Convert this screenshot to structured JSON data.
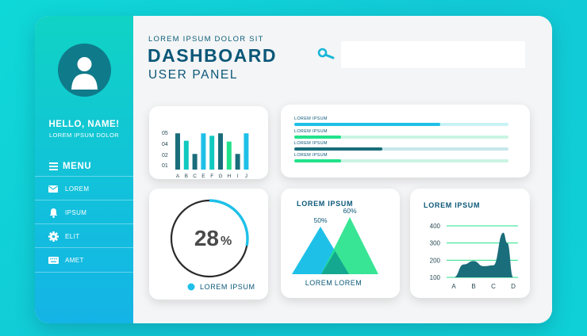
{
  "colors": {
    "accent_dark": "#0b5778",
    "teal": "#10c9c0",
    "cyan": "#1ec0e8",
    "green": "#22e28a",
    "dark_teal": "#1a6d7a"
  },
  "sidebar": {
    "greeting": "HELLO, NAME!",
    "subtitle": "LOREM IPSUM DOLOR",
    "menu_label": "MENU",
    "items": [
      {
        "label": "LOREM",
        "icon": "mail-icon"
      },
      {
        "label": "IPSUM",
        "icon": "bell-icon"
      },
      {
        "label": "ELIT",
        "icon": "gear-icon"
      },
      {
        "label": "AMET",
        "icon": "keyboard-icon"
      }
    ]
  },
  "header": {
    "kicker": "LOREM IPSUM DOLOR SIT",
    "title": "DASHBOARD",
    "subtitle": "USER PANEL",
    "search_placeholder": ""
  },
  "progress_card": {
    "rows": [
      {
        "label": "LOREM IPSUM",
        "value": 0.68,
        "color": "#1ec0e8",
        "track": "#c9f2f5"
      },
      {
        "label": "LOREM IPSUM",
        "value": 0.22,
        "color": "#22e28a",
        "track": "#c9f5e2"
      },
      {
        "label": "LOREM IPSUM",
        "value": 0.41,
        "color": "#1a6d7a",
        "track": "#c7e6ea"
      },
      {
        "label": "LOREM IPSUM",
        "value": 0.22,
        "color": "#22e28a",
        "track": "#c9f5e2"
      }
    ]
  },
  "donut_card": {
    "value": "28",
    "unit": "%",
    "percent": 28,
    "legend": "LOREM IPSUM"
  },
  "chart_data": [
    {
      "type": "bar",
      "categories": [
        "A",
        "B",
        "C",
        "E",
        "F",
        "G",
        "H",
        "I",
        "J"
      ],
      "ytick_labels": [
        "05",
        "04",
        "02",
        "01"
      ],
      "series": [
        {
          "values": [
            4.4,
            3.5,
            1.9,
            4.4,
            4.1,
            4.4,
            3.4,
            1.9,
            4.4
          ]
        }
      ],
      "colors": [
        "#1a6d7a",
        "#10c9c0",
        "#1a6d7a",
        "#1ec0e8",
        "#10c9c0",
        "#1a6d7a",
        "#22e28a",
        "#1a6d7a",
        "#1ec0e8"
      ]
    },
    {
      "type": "area",
      "title": "LOREM IPSUM",
      "series": [
        {
          "values": [
            50,
            60
          ]
        }
      ],
      "data_labels": [
        "50%",
        "60%"
      ],
      "x_labels": [
        "LOREM",
        "LOREM"
      ],
      "colors": [
        "#1ec0e8",
        "#22e28a"
      ]
    },
    {
      "type": "area",
      "title": "LOREM IPSUM",
      "categories": [
        "A",
        "B",
        "C",
        "D"
      ],
      "yticks": [
        400,
        300,
        200,
        100
      ],
      "ylim": [
        100,
        400
      ],
      "series": [
        {
          "x": [
            0,
            0.5,
            1,
            1.5,
            2,
            2.5,
            2.7,
            3
          ],
          "values": [
            100,
            175,
            195,
            165,
            170,
            360,
            300,
            100
          ]
        }
      ],
      "colors": [
        "#1a6d7a",
        "#22e28a"
      ]
    }
  ]
}
